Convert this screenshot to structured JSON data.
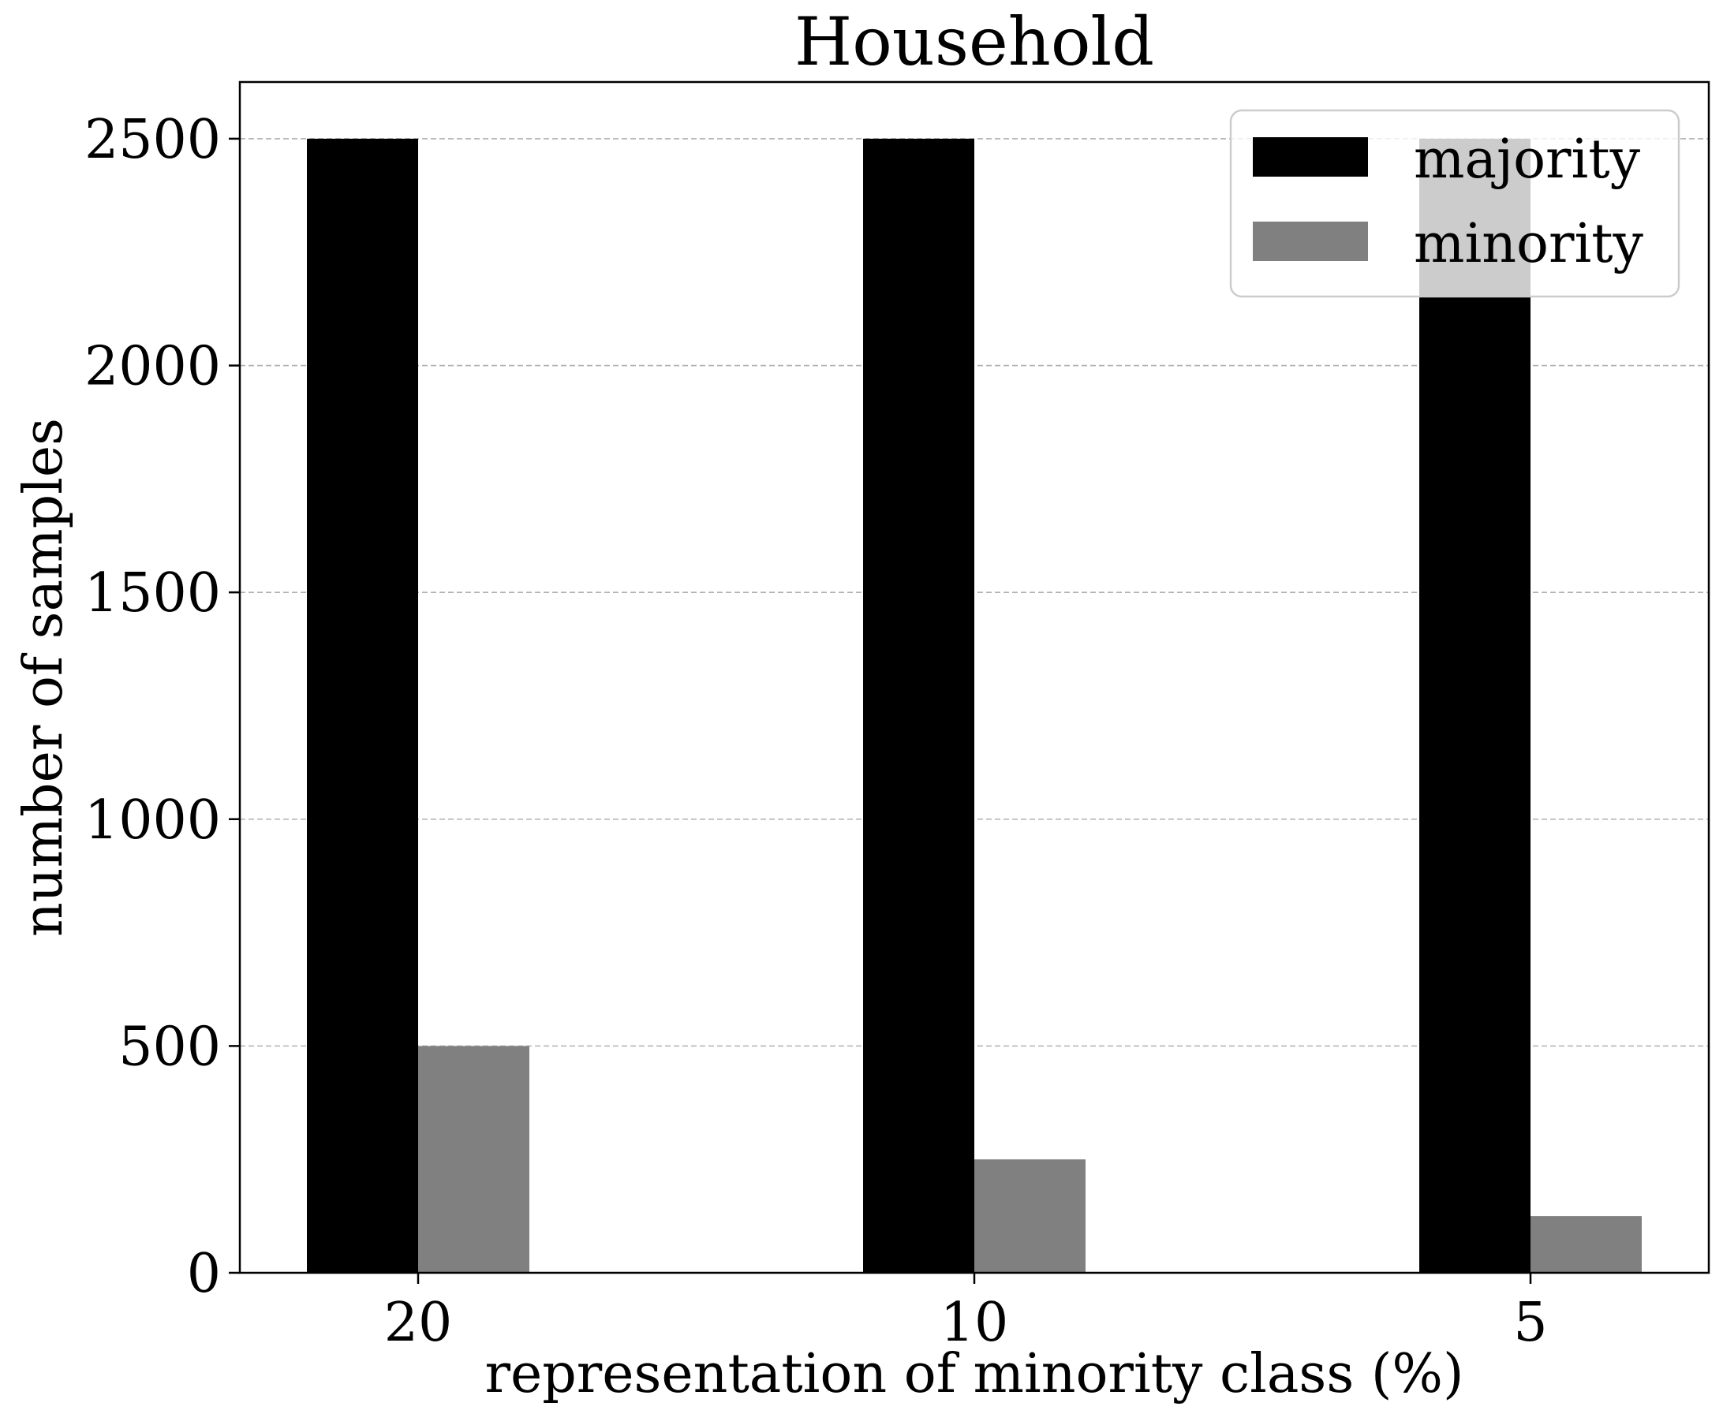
{
  "chart_data": {
    "type": "bar",
    "title": "Household",
    "xlabel": "representation of minority class (%)",
    "ylabel": "number of samples",
    "categories": [
      "20",
      "10",
      "5"
    ],
    "series": [
      {
        "name": "majority",
        "values": [
          2500,
          2500,
          2500
        ],
        "color": "#000000"
      },
      {
        "name": "minority",
        "values": [
          500,
          250,
          125
        ],
        "color": "#808080"
      }
    ],
    "ylim": [
      0,
      2625
    ],
    "yticks": [
      0,
      500,
      1000,
      1500,
      2000,
      2500
    ],
    "grid": {
      "axis": "y",
      "style": "dashed",
      "color": "#b0b0b0"
    },
    "legend": {
      "position": "top-right"
    }
  }
}
